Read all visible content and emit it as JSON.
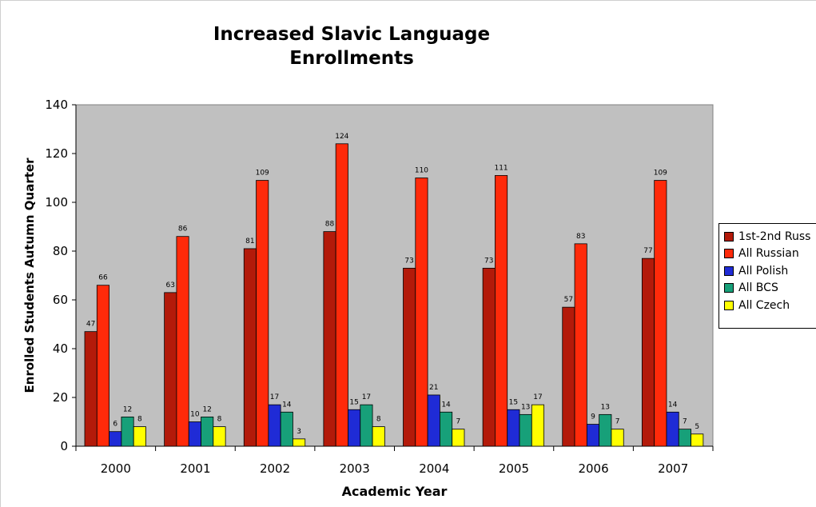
{
  "chart_data": {
    "type": "bar",
    "title_line1": "Increased Slavic Language",
    "title_line2": "Enrollments",
    "xlabel": "Academic Year",
    "ylabel": "Enrolled Students Autumn Quarter",
    "ylim": [
      0,
      140
    ],
    "yticks": [
      "0",
      "20",
      "40",
      "60",
      "80",
      "100",
      "120",
      "140"
    ],
    "categories": [
      "2000",
      "2001",
      "2002",
      "2003",
      "2004",
      "2005",
      "2006",
      "2007"
    ],
    "series": [
      {
        "name": "1st-2nd Russ",
        "color": "#b31a0a",
        "values": [
          47,
          63,
          81,
          88,
          73,
          73,
          57,
          77
        ]
      },
      {
        "name": "All Russian",
        "color": "#ff2a0a",
        "values": [
          66,
          86,
          109,
          124,
          110,
          111,
          83,
          109
        ]
      },
      {
        "name": "All Polish",
        "color": "#1f2bd6",
        "values": [
          6,
          10,
          17,
          15,
          21,
          15,
          9,
          14
        ]
      },
      {
        "name": "All BCS",
        "color": "#17a079",
        "values": [
          12,
          12,
          14,
          17,
          14,
          13,
          13,
          7
        ]
      },
      {
        "name": "All Czech",
        "color": "#ffff00",
        "values": [
          8,
          8,
          3,
          8,
          7,
          17,
          7,
          5
        ]
      }
    ],
    "grid": false,
    "plot_background": "#c0c0c0",
    "legend_position": "right"
  }
}
